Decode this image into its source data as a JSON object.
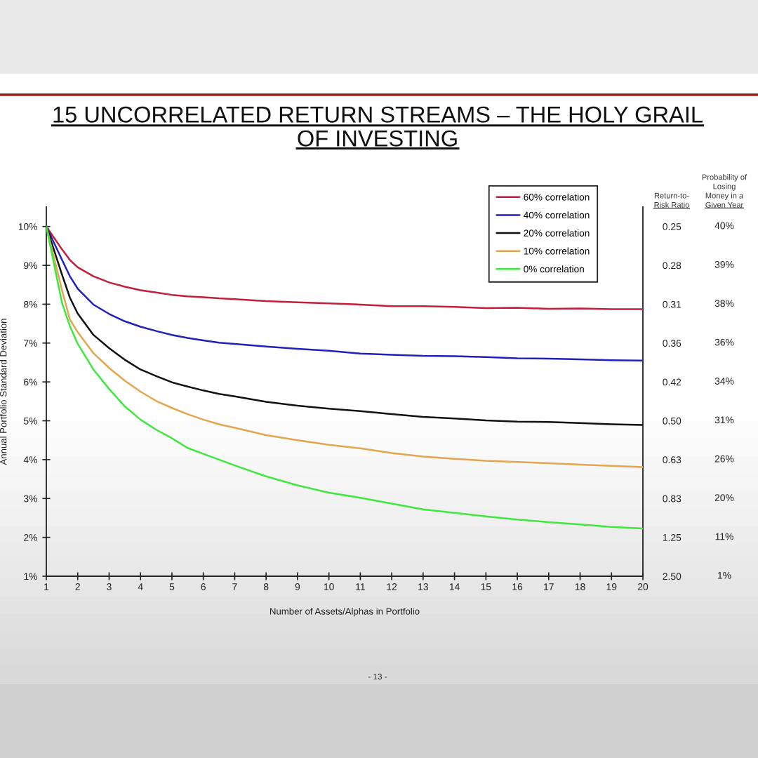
{
  "chart_data": {
    "type": "line",
    "title": "15 UNCORRELATED RETURN STREAMS – THE HOLY GRAIL\nOF INVESTING",
    "xlabel": "Number of Assets/Alphas in Portfolio",
    "ylabel": "Annual Portfolio Standard Deviation",
    "y2label": "Return-to-\nRisk Ratio",
    "y3label": "Probability of\nLosing\nMoney in a\nGiven Year",
    "annotations": [
      "40%",
      "39%",
      "38%",
      "36%",
      "34%",
      "31%",
      "26%",
      "20%",
      "11%",
      "1%",
      "- 13 -"
    ],
    "x": [
      1,
      1.5,
      1.75,
      2,
      2.5,
      3,
      3.5,
      4,
      4.5,
      5,
      5.5,
      6,
      6.5,
      7,
      8,
      9,
      10,
      11,
      12,
      13,
      14,
      15,
      16,
      17,
      18,
      19,
      20
    ],
    "series": [
      {
        "name": "60% correlation",
        "color": "#c41e3a",
        "values": [
          10,
          9.41,
          9.14,
          8.95,
          8.72,
          8.56,
          8.45,
          8.36,
          8.3,
          8.24,
          8.2,
          8.18,
          8.15,
          8.13,
          8.08,
          8.05,
          8.02,
          7.99,
          7.95,
          7.95,
          7.93,
          7.9,
          7.91,
          7.88,
          7.89,
          7.87,
          7.87
        ]
      },
      {
        "name": "40% correlation",
        "color": "#2020bf",
        "values": [
          10,
          9.14,
          8.72,
          8.4,
          7.99,
          7.75,
          7.56,
          7.42,
          7.31,
          7.21,
          7.13,
          7.07,
          7.01,
          6.98,
          6.91,
          6.85,
          6.8,
          6.73,
          6.7,
          6.67,
          6.66,
          6.64,
          6.61,
          6.6,
          6.58,
          6.56,
          6.55
        ]
      },
      {
        "name": "20% correlation",
        "color": "#111111",
        "values": [
          10,
          8.76,
          8.17,
          7.76,
          7.21,
          6.87,
          6.57,
          6.32,
          6.15,
          5.99,
          5.88,
          5.78,
          5.69,
          5.63,
          5.49,
          5.39,
          5.31,
          5.25,
          5.17,
          5.1,
          5.06,
          5.01,
          4.98,
          4.97,
          4.94,
          4.91,
          4.89
        ]
      },
      {
        "name": "10% correlation",
        "color": "#e3a54e",
        "values": [
          10,
          8.36,
          7.61,
          7.28,
          6.74,
          6.36,
          6.03,
          5.75,
          5.51,
          5.33,
          5.17,
          5.03,
          4.91,
          4.82,
          4.63,
          4.5,
          4.38,
          4.29,
          4.17,
          4.08,
          4.02,
          3.97,
          3.94,
          3.91,
          3.87,
          3.84,
          3.81
        ]
      },
      {
        "name": "0% correlation",
        "color": "#3ee83e",
        "values": [
          10,
          8.03,
          7.44,
          6.98,
          6.32,
          5.82,
          5.37,
          5.03,
          4.77,
          4.55,
          4.3,
          4.15,
          4.0,
          3.85,
          3.57,
          3.34,
          3.15,
          3.02,
          2.87,
          2.72,
          2.63,
          2.54,
          2.46,
          2.39,
          2.33,
          2.27,
          2.23
        ]
      }
    ],
    "xlim": [
      1,
      20
    ],
    "xticks": [
      1,
      2,
      3,
      4,
      5,
      6,
      7,
      8,
      9,
      10,
      11,
      12,
      13,
      14,
      15,
      16,
      17,
      18,
      19,
      20
    ],
    "ylim": [
      1,
      10.5
    ],
    "yticks": [
      {
        "value": 1,
        "label": "1%"
      },
      {
        "value": 2,
        "label": "2%"
      },
      {
        "value": 3,
        "label": "3%"
      },
      {
        "value": 4,
        "label": "4%"
      },
      {
        "value": 5,
        "label": "5%"
      },
      {
        "value": 6,
        "label": "6%"
      },
      {
        "value": 7,
        "label": "7%"
      },
      {
        "value": 8,
        "label": "8%"
      },
      {
        "value": 9,
        "label": "9%"
      },
      {
        "value": 10,
        "label": "10%"
      }
    ],
    "y2_categories": [
      "0.25",
      "0.28",
      "0.31",
      "0.36",
      "0.42",
      "0.50",
      "0.63",
      "0.83",
      "1.25",
      "2.50"
    ],
    "legend": "top right"
  }
}
